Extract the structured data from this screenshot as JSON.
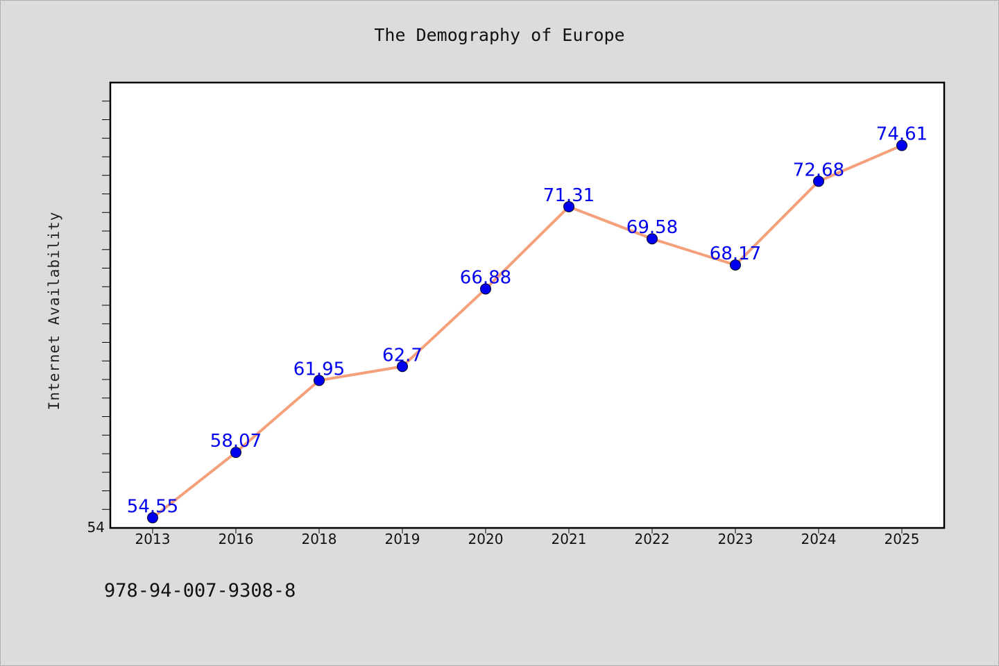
{
  "title": "The Demography of Europe",
  "isbn": "978-94-007-9308-8",
  "colors": {
    "background": "#dcdcdc",
    "plot_background": "#ffffff",
    "line": "#f4a07a",
    "marker": "#0000ee",
    "label": "#0000ee"
  },
  "chart_data": {
    "type": "line",
    "title": "The Demography of Europe",
    "xlabel": "",
    "ylabel": "Internet Availability",
    "categories": [
      "2013",
      "2016",
      "2018",
      "2019",
      "2020",
      "2021",
      "2022",
      "2023",
      "2024",
      "2025"
    ],
    "series": [
      {
        "values": [
          54.55,
          58.07,
          61.95,
          62.7,
          66.88,
          71.31,
          69.58,
          68.17,
          72.68,
          74.61
        ],
        "labels": [
          "54.55",
          "58.07",
          "61.95",
          "62.7",
          "66.88",
          "71.31",
          "69.58",
          "68.17",
          "72.68",
          "74.61"
        ]
      }
    ],
    "ylim": [
      54,
      78
    ],
    "y_tick_labels": [
      "54"
    ],
    "grid": false,
    "legend": "none",
    "markers": true
  }
}
